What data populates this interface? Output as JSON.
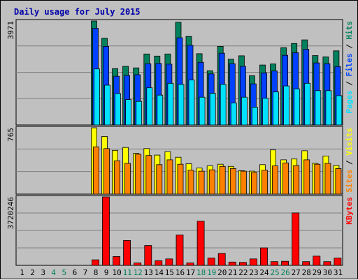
{
  "chart_data": {
    "type": "bar",
    "title": "Daily usage for July 2015",
    "colors": {
      "title": "#0000aa",
      "background": "#c0c0c0",
      "hits": "#00805c",
      "files": "#0040ff",
      "pages": "#00e0ff",
      "visits": "#ffff00",
      "sites": "#ff8000",
      "kbytes": "#ff0000",
      "weekend_label": "#00805c",
      "weekday_label": "#000000"
    },
    "days": [
      "1",
      "2",
      "3",
      "4",
      "5",
      "6",
      "7",
      "8",
      "9",
      "10",
      "11",
      "12",
      "13",
      "14",
      "15",
      "16",
      "17",
      "18",
      "19",
      "20",
      "21",
      "22",
      "23",
      "24",
      "25",
      "26",
      "27",
      "28",
      "29",
      "30",
      "31"
    ],
    "weekend_days": [
      "4",
      "5",
      "11",
      "12",
      "18",
      "19",
      "25",
      "26"
    ],
    "panels": [
      {
        "id": "hits-files-pages",
        "max_label": "3971",
        "ylim": [
          0,
          3971
        ],
        "legend": [
          {
            "text": "Pages",
            "color": "#00e0ff"
          },
          {
            "text": " / ",
            "color": "#000000"
          },
          {
            "text": "Files",
            "color": "#0040ff"
          },
          {
            "text": " / ",
            "color": "#000000"
          },
          {
            "text": "Hits",
            "color": "#00805c"
          }
        ],
        "series": [
          {
            "name": "Hits",
            "color": "#00805c",
            "values": [
              0,
              0,
              0,
              0,
              0,
              0,
              0,
              3971,
              3310,
              2150,
              2240,
              2180,
              2710,
              2630,
              2710,
              3920,
              3380,
              2720,
              2070,
              3000,
              2510,
              2640,
              1880,
              2290,
              2330,
              2950,
              3110,
              3250,
              2650,
              2600,
              2830
            ]
          },
          {
            "name": "Files",
            "color": "#0040ff",
            "values": [
              0,
              0,
              0,
              0,
              0,
              0,
              0,
              3690,
              3000,
              1860,
              1890,
              1920,
              2340,
              2350,
              2320,
              3330,
              3040,
              2390,
              1950,
              2740,
              2340,
              2240,
              1570,
              1990,
              2060,
              2660,
              2760,
              2890,
              2370,
              2340,
              2230
            ]
          },
          {
            "name": "Pages",
            "color": "#00e0ff",
            "values": [
              0,
              0,
              0,
              0,
              0,
              0,
              0,
              2140,
              1520,
              1200,
              970,
              900,
              1420,
              1140,
              1590,
              1550,
              1720,
              1060,
              1210,
              1550,
              840,
              1060,
              680,
              1020,
              1260,
              1490,
              1380,
              1590,
              1310,
              1310,
              1120
            ]
          }
        ]
      },
      {
        "id": "visits-sites",
        "max_label": "765",
        "ylim": [
          0,
          765
        ],
        "legend": [
          {
            "text": "Sites",
            "color": "#ff8000"
          },
          {
            "text": " / ",
            "color": "#000000"
          },
          {
            "text": "Visits",
            "color": "#ffff00"
          }
        ],
        "series": [
          {
            "name": "Visits",
            "color": "#ffff00",
            "values": [
              0,
              0,
              0,
              0,
              0,
              0,
              0,
              765,
              665,
              505,
              538,
              470,
              525,
              450,
              490,
              425,
              350,
              300,
              325,
              345,
              320,
              270,
              265,
              340,
              510,
              395,
              405,
              500,
              355,
              440,
              330
            ]
          },
          {
            "name": "Sites",
            "color": "#ff8000",
            "values": [
              0,
              0,
              0,
              0,
              0,
              0,
              0,
              545,
              525,
              385,
              355,
              460,
              445,
              340,
              395,
              345,
              275,
              265,
              280,
              320,
              295,
              265,
              250,
              275,
              325,
              360,
              330,
              395,
              345,
              355,
              295
            ]
          }
        ]
      },
      {
        "id": "kbytes",
        "max_label": "3720246",
        "ylim": [
          0,
          3720246
        ],
        "legend": [
          {
            "text": "KBytes",
            "color": "#ff0000"
          }
        ],
        "series": [
          {
            "name": "KBytes",
            "color": "#ff0000",
            "values": [
              0,
              0,
              0,
              0,
              0,
              0,
              0,
              300000,
              3720246,
              480000,
              1350000,
              130000,
              1080000,
              250000,
              350000,
              1650000,
              130000,
              2400000,
              400000,
              650000,
              180000,
              160000,
              350000,
              950000,
              200000,
              220000,
              2850000,
              200000,
              500000,
              200000,
              400000
            ]
          }
        ]
      }
    ]
  }
}
